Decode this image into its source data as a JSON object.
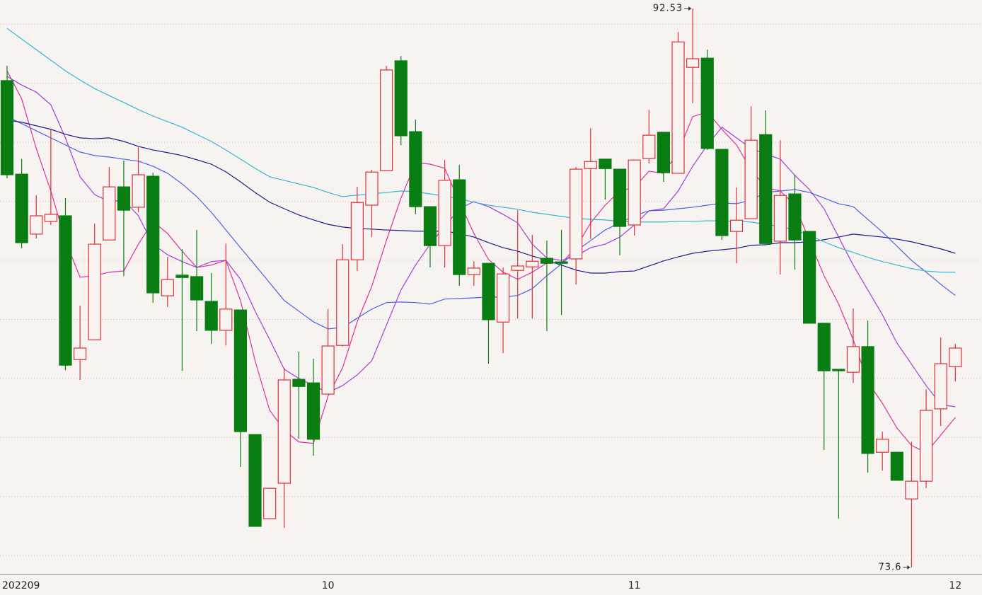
{
  "chart_data": {
    "type": "candlestick",
    "categories": [
      "202209",
      null,
      null,
      null,
      null,
      null,
      null,
      null,
      null,
      null,
      null,
      null,
      null,
      null,
      null,
      null,
      null,
      null,
      null,
      null,
      null,
      null,
      "10",
      null,
      null,
      null,
      null,
      null,
      null,
      null,
      null,
      null,
      null,
      null,
      null,
      null,
      null,
      null,
      null,
      null,
      null,
      null,
      null,
      "11",
      null,
      null,
      null,
      null,
      null,
      null,
      null,
      null,
      null,
      null,
      null,
      null,
      null,
      null,
      null,
      null,
      null,
      null,
      null,
      null,
      null,
      "12"
    ],
    "open": [
      90.09,
      86.92,
      84.89,
      85.32,
      85.51,
      80.64,
      81.31,
      84.69,
      86.49,
      85.8,
      86.85,
      82.8,
      83.5,
      83.45,
      82.61,
      81.63,
      82.32,
      78.1,
      75.25,
      76.45,
      79.97,
      79.85,
      79.47,
      81.12,
      84.02,
      85.87,
      87.04,
      90.76,
      88.36,
      85.82,
      84.5,
      86.73,
      83.52,
      83.9,
      81.91,
      83.66,
      83.78,
      84.07,
      83.95,
      84.05,
      87.11,
      87.43,
      87.09,
      85.2,
      87.45,
      88.34,
      86.95,
      90.54,
      90.85,
      87.76,
      84.98,
      85.41,
      88.26,
      84.65,
      86.25,
      84.98,
      81.87,
      80.31,
      80.21,
      81.08,
      77.5,
      77.5,
      75.92,
      76.52,
      78.97,
      80.4
    ],
    "high": [
      90.59,
      87.43,
      86.2,
      88.43,
      86.11,
      82.47,
      85.24,
      87.16,
      87.38,
      87.83,
      86.97,
      84.12,
      84.38,
      85.03,
      83.57,
      84.57,
      82.32,
      78.1,
      76.28,
      80.36,
      80.91,
      80.67,
      82.35,
      84.55,
      86.49,
      87.07,
      90.59,
      90.92,
      88.77,
      85.82,
      87.4,
      87.23,
      83.97,
      83.9,
      83.76,
      85.7,
      84.86,
      84.67,
      85.03,
      87.16,
      88.48,
      87.43,
      87.09,
      87.4,
      89.1,
      88.34,
      91.74,
      92.53,
      91.14,
      87.76,
      86.47,
      89.22,
      89.08,
      88.07,
      86.9,
      84.98,
      81.87,
      80.31,
      82.37,
      81.96,
      78.2,
      77.5,
      77.86,
      79.64,
      81.39,
      81.17
    ],
    "low": [
      86.78,
      84.41,
      84.74,
      85.2,
      80.28,
      79.95,
      81.31,
      84.69,
      83.47,
      85.63,
      82.56,
      82.42,
      80.26,
      81.6,
      81.17,
      81.12,
      77.0,
      74.99,
      75.25,
      74.94,
      77.96,
      77.38,
      79.47,
      81.08,
      83.64,
      84.79,
      87.04,
      87.9,
      85.56,
      83.76,
      83.76,
      83.14,
      83.14,
      80.5,
      80.86,
      82.03,
      82.03,
      81.6,
      82.15,
      83.18,
      84.72,
      86.06,
      84.17,
      84.84,
      87.28,
      86.66,
      86.95,
      89.32,
      87.74,
      84.69,
      83.9,
      85.41,
      84.57,
      83.52,
      83.69,
      81.87,
      77.58,
      75.25,
      79.85,
      76.81,
      76.88,
      76.55,
      73.6,
      76.28,
      78.39,
      79.9
    ],
    "close": [
      86.9,
      84.6,
      85.51,
      85.56,
      80.45,
      81.03,
      84.55,
      86.49,
      85.7,
      86.9,
      82.9,
      83.35,
      83.42,
      82.66,
      81.63,
      82.35,
      78.2,
      74.99,
      76.28,
      79.95,
      79.73,
      77.94,
      81.1,
      84.02,
      85.96,
      86.99,
      90.45,
      88.22,
      85.82,
      84.5,
      86.71,
      83.52,
      83.74,
      81.99,
      83.54,
      83.81,
      83.97,
      83.9,
      83.9,
      87.09,
      87.35,
      87.11,
      85.15,
      87.4,
      88.24,
      86.97,
      91.4,
      90.83,
      87.79,
      84.84,
      85.36,
      88.07,
      84.57,
      86.2,
      84.69,
      81.87,
      80.26,
      80.26,
      81.08,
      77.46,
      77.94,
      76.55,
      76.52,
      78.92,
      80.5,
      81.03
    ],
    "up_color": "#e0303a",
    "down_color": "#0a7d12",
    "series": [
      {
        "color": "#e0309c",
        "values": [
          90.42,
          89.47,
          87.79,
          86.35,
          84.67,
          83.43,
          83.48,
          83.6,
          83.64,
          84.55,
          85.32,
          84.91,
          84.31,
          83.76,
          83.84,
          84.0,
          82.64,
          80.6,
          78.92,
          78.25,
          77.85,
          77.8,
          79.4,
          80.36,
          81.92,
          83.12,
          84.67,
          86.11,
          87.31,
          87.26,
          87.12,
          85.99,
          84.91,
          84.03,
          83.6,
          83.36,
          83.6,
          83.91,
          83.91,
          84.43,
          85.27,
          85.87,
          86.35,
          86.47,
          87.02,
          86.95,
          87.67,
          88.87,
          89.03,
          88.44,
          87.91,
          87.07,
          86.47,
          86.35,
          85.87,
          84.67,
          83.48,
          82.52,
          81.32,
          79.88,
          79.16,
          78.32,
          77.73,
          77.49,
          78.08,
          78.68
        ]
      },
      {
        "color": "#a23ee0",
        "values": [
          90.23,
          89.94,
          89.7,
          89.27,
          88.15,
          86.83,
          86.23,
          85.99,
          86.04,
          85.51,
          84.55,
          84.19,
          83.96,
          83.76,
          83.96,
          84.0,
          83.36,
          82.28,
          81.32,
          80.31,
          80.0,
          79.76,
          79.52,
          79.76,
          80.12,
          80.6,
          81.8,
          83.0,
          83.84,
          84.55,
          85.15,
          85.75,
          85.99,
          85.82,
          85.56,
          85.27,
          84.55,
          84.08,
          84.0,
          84.15,
          84.43,
          84.55,
          84.79,
          85.2,
          85.68,
          85.75,
          86.35,
          87.19,
          87.91,
          88.51,
          88.15,
          87.79,
          87.6,
          87.43,
          86.88,
          86.4,
          85.75,
          84.79,
          83.84,
          83.0,
          82.16,
          81.2,
          80.48,
          79.76,
          79.12,
          79.04
        ]
      },
      {
        "color": "#4a62e6",
        "values": [
          88.87,
          88.63,
          88.39,
          88.15,
          87.91,
          87.67,
          87.55,
          87.5,
          87.43,
          87.36,
          87.19,
          86.95,
          86.59,
          86.16,
          85.63,
          85.03,
          84.43,
          83.84,
          83.24,
          82.64,
          82.28,
          81.92,
          81.68,
          81.73,
          82.04,
          82.35,
          82.57,
          82.59,
          82.57,
          82.52,
          82.69,
          82.71,
          82.73,
          82.76,
          82.76,
          82.81,
          83.04,
          83.48,
          83.88,
          84.31,
          84.67,
          85.03,
          85.27,
          85.51,
          85.68,
          85.7,
          85.75,
          85.8,
          85.87,
          85.94,
          85.92,
          86.04,
          86.3,
          86.35,
          86.4,
          86.3,
          86.11,
          85.92,
          85.82,
          85.39,
          84.96,
          84.48,
          84.0,
          83.6,
          83.19,
          82.81
        ]
      },
      {
        "color": "#1c1c8e",
        "values": [
          88.75,
          88.68,
          88.56,
          88.44,
          88.27,
          88.15,
          88.12,
          88.15,
          88.03,
          87.86,
          87.74,
          87.65,
          87.55,
          87.41,
          87.26,
          87.0,
          86.66,
          86.3,
          85.97,
          85.75,
          85.54,
          85.37,
          85.22,
          85.13,
          85.08,
          85.06,
          85.03,
          85.01,
          84.99,
          84.99,
          84.99,
          84.91,
          84.79,
          84.6,
          84.43,
          84.31,
          84.15,
          84.0,
          83.84,
          83.67,
          83.57,
          83.57,
          83.62,
          83.64,
          83.81,
          83.98,
          84.12,
          84.24,
          84.31,
          84.36,
          84.41,
          84.51,
          84.53,
          84.6,
          84.6,
          84.63,
          84.7,
          84.79,
          84.89,
          84.84,
          84.79,
          84.72,
          84.63,
          84.51,
          84.39,
          84.24
        ]
      },
      {
        "color": "#34b6d2",
        "values": [
          91.86,
          91.5,
          91.14,
          90.78,
          90.42,
          90.11,
          89.82,
          89.58,
          89.35,
          89.11,
          88.89,
          88.7,
          88.51,
          88.27,
          88.03,
          87.74,
          87.43,
          87.12,
          86.83,
          86.71,
          86.59,
          86.47,
          86.3,
          86.16,
          86.21,
          86.25,
          86.3,
          86.35,
          86.33,
          86.25,
          86.18,
          86.09,
          85.97,
          85.87,
          85.8,
          85.73,
          85.63,
          85.56,
          85.49,
          85.42,
          85.39,
          85.37,
          85.32,
          85.3,
          85.3,
          85.3,
          85.32,
          85.32,
          85.34,
          85.34,
          85.32,
          85.3,
          85.22,
          85.15,
          85.03,
          84.84,
          84.63,
          84.43,
          84.27,
          84.1,
          83.96,
          83.84,
          83.72,
          83.64,
          83.6,
          83.6
        ]
      }
    ],
    "ylim": [
      73.36,
      92.82
    ],
    "yticks": [
      74,
      76,
      78,
      80,
      82,
      84,
      86,
      88,
      90,
      92
    ],
    "grid": true
  }
}
